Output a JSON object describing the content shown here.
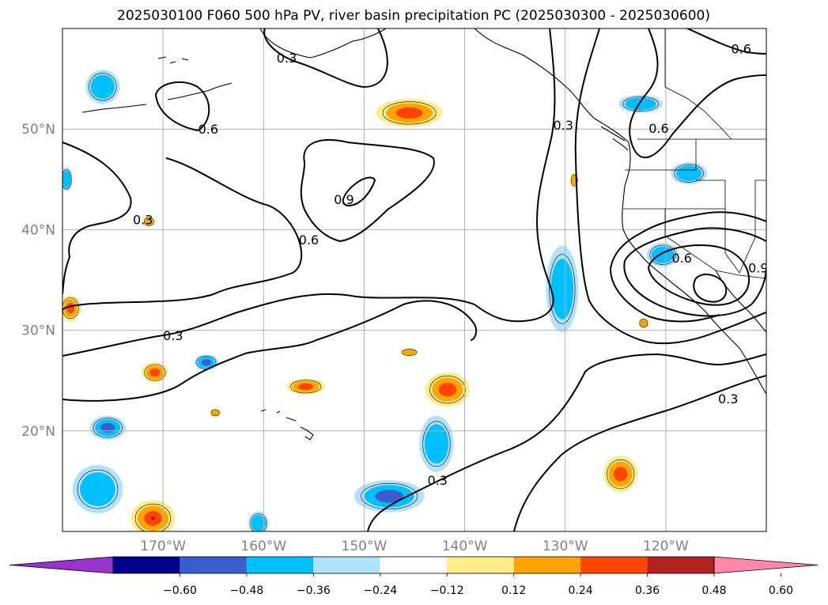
{
  "title": "2025030100 F060 500 hPa PV, river basin precipitation PC (2025030300 - 2025030600)",
  "map": {
    "lon_range": [
      -180,
      -110
    ],
    "lat_range": [
      10,
      60
    ],
    "lat_labels": [
      {
        "lat": 50,
        "text": "50°N"
      },
      {
        "lat": 40,
        "text": "40°N"
      },
      {
        "lat": 30,
        "text": "30°N"
      },
      {
        "lat": 20,
        "text": "20°N"
      }
    ],
    "lon_labels": [
      {
        "lon": -170,
        "text": "170°W"
      },
      {
        "lon": -160,
        "text": "160°W"
      },
      {
        "lon": -150,
        "text": "150°W"
      },
      {
        "lon": -140,
        "text": "140°W"
      },
      {
        "lon": -130,
        "text": "130°W"
      },
      {
        "lon": -120,
        "text": "120°W"
      }
    ],
    "contour_labels": [
      {
        "text": "0.3",
        "lon": -172,
        "lat": 41
      },
      {
        "text": "0.6",
        "lon": -165.5,
        "lat": 50
      },
      {
        "text": "0.3",
        "lon": -157.7,
        "lat": 57.1
      },
      {
        "text": "0.6",
        "lon": -155.5,
        "lat": 39
      },
      {
        "text": "0.9",
        "lon": -152,
        "lat": 43
      },
      {
        "text": "0.3",
        "lon": -169,
        "lat": 29.5
      },
      {
        "text": "0.3",
        "lon": -130.2,
        "lat": 50.4
      },
      {
        "text": "0.6",
        "lon": -120.7,
        "lat": 50.1
      },
      {
        "text": "0.6",
        "lon": -112.5,
        "lat": 58
      },
      {
        "text": "0.6",
        "lon": -118.4,
        "lat": 37.2
      },
      {
        "text": "0.9",
        "lon": -110.8,
        "lat": 36.2
      },
      {
        "text": "0.3",
        "lon": -113.8,
        "lat": 23.2
      },
      {
        "text": "0.3",
        "lon": -142.7,
        "lat": 15.1
      }
    ]
  },
  "colorbar": {
    "colors": [
      "#9933cc",
      "#00008b",
      "#3a5fcd",
      "#00bfff",
      "#b0e2ff",
      "#ffffff",
      "#ffec8b",
      "#ffa500",
      "#ff4500",
      "#b22222",
      "#ff88aa"
    ],
    "labels": [
      "−0.60",
      "−0.48",
      "−0.36",
      "−0.24",
      "−0.12",
      "0.12",
      "0.24",
      "0.36",
      "0.48",
      "0.60"
    ]
  },
  "precip_blobs": [
    {
      "lon": -176,
      "lat": 54.2,
      "rx": 1.7,
      "ry": 1.7,
      "level": "neg_0.24"
    },
    {
      "lon": -179.6,
      "lat": 45,
      "rx": 0.6,
      "ry": 1.2,
      "level": "neg_0.24"
    },
    {
      "lon": -165.7,
      "lat": 26.8,
      "rx": 1.2,
      "ry": 0.8,
      "level": "neg_0.36"
    },
    {
      "lon": -175.5,
      "lat": 20.3,
      "rx": 1.8,
      "ry": 1.2,
      "level": "neg_0.36"
    },
    {
      "lon": -176.5,
      "lat": 14.2,
      "rx": 2.5,
      "ry": 2.4,
      "level": "neg_0.24"
    },
    {
      "lon": -160.5,
      "lat": 10.8,
      "rx": 1,
      "ry": 1.2,
      "level": "neg_0.24"
    },
    {
      "lon": -147.5,
      "lat": 13.5,
      "rx": 3.5,
      "ry": 1.6,
      "level": "neg_0.36"
    },
    {
      "lon": -142.8,
      "lat": 18.7,
      "rx": 1.7,
      "ry": 2.8,
      "level": "neg_0.24"
    },
    {
      "lon": -130.3,
      "lat": 34.1,
      "rx": 1.6,
      "ry": 4.3,
      "level": "neg_0.24"
    },
    {
      "lon": -122.5,
      "lat": 52.5,
      "rx": 2.2,
      "ry": 0.9,
      "level": "neg_0.24"
    },
    {
      "lon": -117.7,
      "lat": 45.6,
      "rx": 1.8,
      "ry": 1.1,
      "level": "neg_0.24"
    },
    {
      "lon": -120.3,
      "lat": 37.5,
      "rx": 1.6,
      "ry": 1.2,
      "level": "neg_0.24"
    },
    {
      "lon": -145.5,
      "lat": 51.6,
      "rx": 3.3,
      "ry": 1.4,
      "level": "pos_0.36"
    },
    {
      "lon": -179.2,
      "lat": 32.2,
      "rx": 1,
      "ry": 1.3,
      "level": "pos_0.36"
    },
    {
      "lon": -170.8,
      "lat": 25.8,
      "rx": 1.3,
      "ry": 1,
      "level": "pos_0.36"
    },
    {
      "lon": -155.8,
      "lat": 24.4,
      "rx": 1.9,
      "ry": 0.8,
      "level": "pos_0.36"
    },
    {
      "lon": -141.7,
      "lat": 24.1,
      "rx": 2.2,
      "ry": 1.7,
      "level": "pos_0.36"
    },
    {
      "lon": -145.5,
      "lat": 27.8,
      "rx": 0.9,
      "ry": 0.4,
      "level": "pos_0.24"
    },
    {
      "lon": -171,
      "lat": 11.3,
      "rx": 2.2,
      "ry": 1.8,
      "level": "pos_0.48"
    },
    {
      "lon": -124.5,
      "lat": 15.7,
      "rx": 1.7,
      "ry": 1.8,
      "level": "pos_0.36"
    },
    {
      "lon": -171.4,
      "lat": 40.8,
      "rx": 0.6,
      "ry": 0.5,
      "level": "pos_0.24"
    },
    {
      "lon": -164.8,
      "lat": 21.8,
      "rx": 0.5,
      "ry": 0.4,
      "level": "pos_0.24"
    },
    {
      "lon": -129.1,
      "lat": 44.9,
      "rx": 0.4,
      "ry": 0.7,
      "level": "pos_0.24"
    },
    {
      "lon": -122.2,
      "lat": 30.7,
      "rx": 0.5,
      "ry": 0.5,
      "level": "pos_0.24"
    }
  ]
}
